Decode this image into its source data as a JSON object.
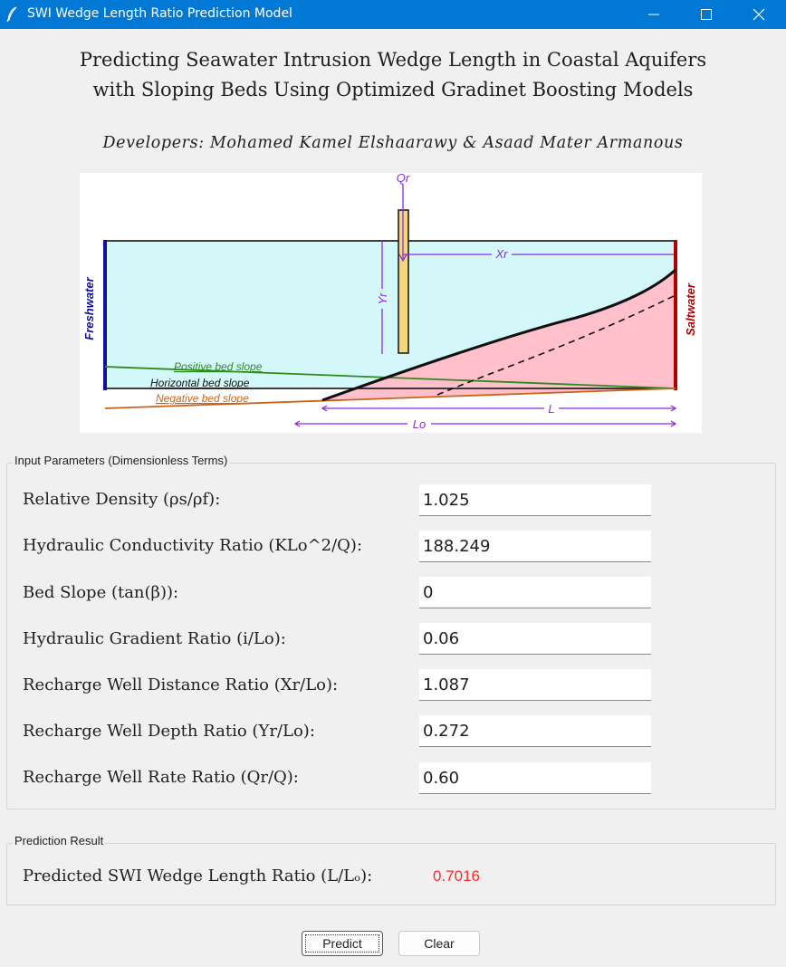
{
  "window": {
    "title": "SWI Wedge Length Ratio Prediction Model",
    "colors": {
      "titlebar": "#0078d4",
      "titlebar_text": "#ffffff",
      "background": "#f0f0f0"
    },
    "controls": [
      "minimize-icon",
      "maximize-icon",
      "close-icon"
    ]
  },
  "header": {
    "title_line1": "Predicting Seawater Intrusion Wedge Length in Coastal Aquifers",
    "title_line2": "with Sloping Beds Using Optimized Gradinet Boosting Models",
    "developers": "Developers: Mohamed Kamel Elshaarawy & Asaad Mater Armanous"
  },
  "diagram": {
    "labels": {
      "qr": "Qr",
      "xr": "Xr",
      "yr": "Yr",
      "freshwater": "Freshwater",
      "saltwater": "Saltwater",
      "positive_slope": "Positive bed slope",
      "horizontal_slope": "Horizontal bed slope",
      "negative_slope": "Negative bed slope",
      "l": "L",
      "lo": "Lo"
    },
    "colors": {
      "freshwater_fill": "#d4f7fa",
      "saltwater_fill": "#ffc0cb",
      "freshwater_boundary": "#1010a0",
      "saltwater_boundary": "#b00000",
      "well": "#f5d77a",
      "annotation": "#8a2be2",
      "positive_slope": "#2e8b20",
      "negative_slope": "#c8651b"
    }
  },
  "inputs": {
    "legend": "Input Parameters (Dimensionless Terms)",
    "params": [
      {
        "label": "Relative Density (ρs/ρf):",
        "value": "1.025"
      },
      {
        "label": "Hydraulic Conductivity Ratio (KLo^2/Q):",
        "value": "188.249"
      },
      {
        "label": "Bed Slope (tan(β)):",
        "value": "0"
      },
      {
        "label": "Hydraulic Gradient Ratio (i/Lo):",
        "value": "0.06"
      },
      {
        "label": "Recharge Well Distance Ratio (Xr/Lo):",
        "value": "1.087"
      },
      {
        "label": "Recharge Well Depth Ratio (Yr/Lo):",
        "value": "0.272"
      },
      {
        "label": "Recharge Well Rate Ratio (Qr/Q):",
        "value": "0.60"
      }
    ]
  },
  "result": {
    "legend": "Prediction Result",
    "label": "Predicted SWI Wedge Length Ratio (L/Lₒ):",
    "value": "0.7016",
    "value_color": "#ff2b2b"
  },
  "buttons": {
    "predict": "Predict",
    "clear": "Clear"
  }
}
